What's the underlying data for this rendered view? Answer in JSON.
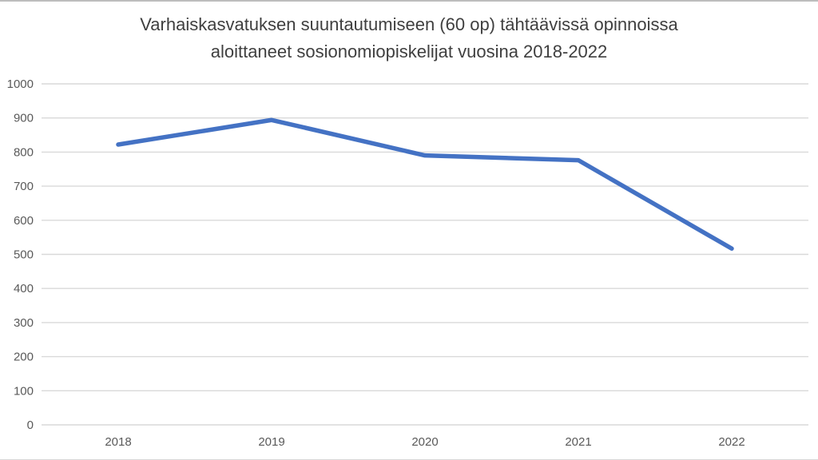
{
  "chart_data": {
    "type": "line",
    "title": "Varhaiskasvatuksen suuntautumiseen (60 op) tähtäävissä opinnoissa aloittaneet sosionomiopiskelijat vuosina 2018-2022",
    "title_lines": [
      "Varhaiskasvatuksen suuntautumiseen (60 op) tähtäävissä opinnoissa",
      "aloittaneet sosionomiopiskelijat vuosina 2018-2022"
    ],
    "categories": [
      "2018",
      "2019",
      "2020",
      "2021",
      "2022"
    ],
    "values": [
      822,
      894,
      790,
      776,
      517
    ],
    "xlabel": "",
    "ylabel": "",
    "ylim": [
      0,
      1000
    ],
    "yticks": [
      0,
      100,
      200,
      300,
      400,
      500,
      600,
      700,
      800,
      900,
      1000
    ],
    "grid": true,
    "legend": false,
    "colors": {
      "line": "#4472C4",
      "gridline": "#D9D9D9",
      "tick_text": "#595959",
      "title_text": "#3F3F3F"
    }
  }
}
